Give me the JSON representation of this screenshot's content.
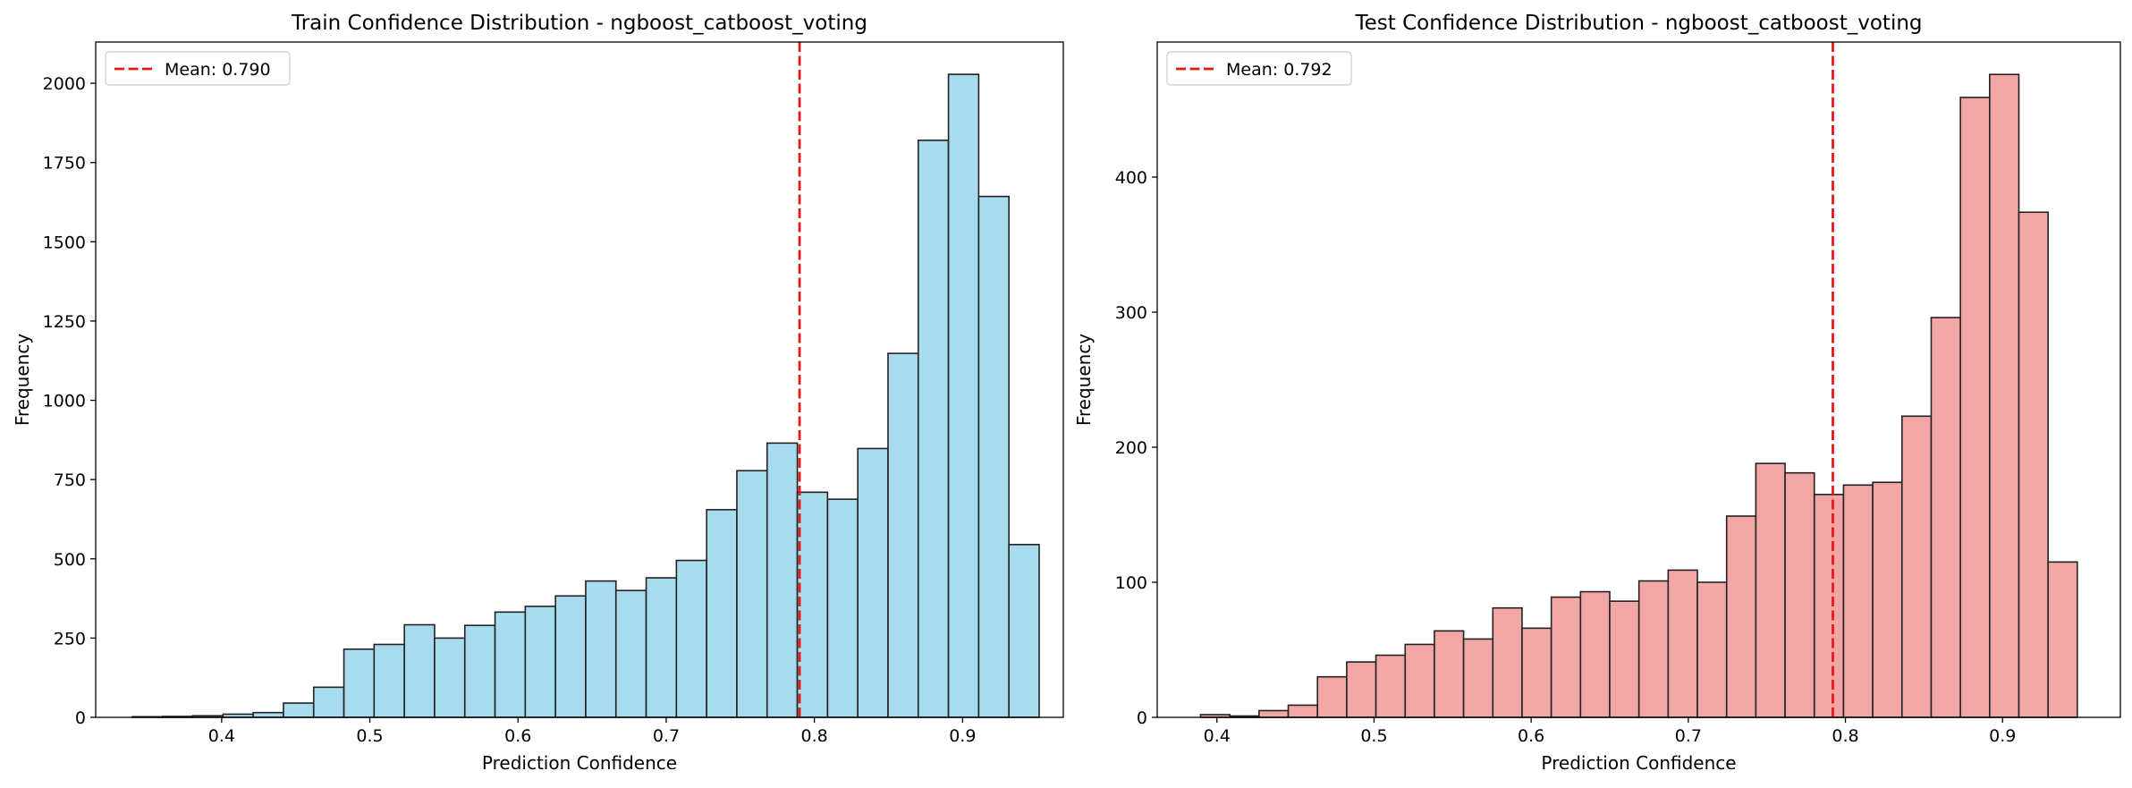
{
  "chart_data": [
    {
      "type": "bar",
      "title": "Train Confidence Distribution - ngboost_catboost_voting",
      "xlabel": "Prediction Confidence",
      "ylabel": "Frequency",
      "xlim": [
        0.315,
        0.968
      ],
      "ylim": [
        0,
        2130
      ],
      "xticks": [
        0.4,
        0.5,
        0.6,
        0.7,
        0.8,
        0.9
      ],
      "xtick_labels": [
        "0.4",
        "0.5",
        "0.6",
        "0.7",
        "0.8",
        "0.9"
      ],
      "yticks": [
        0,
        250,
        500,
        750,
        1000,
        1250,
        1500,
        1750,
        2000
      ],
      "ytick_labels": [
        "0",
        "250",
        "500",
        "750",
        "1000",
        "1250",
        "1500",
        "1750",
        "2000"
      ],
      "bin_start": 0.3397,
      "bin_width": 0.0204,
      "values": [
        2,
        3,
        5,
        10,
        15,
        45,
        95,
        215,
        230,
        292,
        250,
        290,
        332,
        350,
        383,
        430,
        400,
        440,
        495,
        655,
        778,
        865,
        710,
        688,
        848,
        1148,
        1820,
        2028,
        1643,
        545
      ],
      "bar_color": "#a9dbee",
      "edge_color": "#222222",
      "mean": 0.79,
      "mean_color": "#e31a1c",
      "legend_label": "Mean: 0.790",
      "legend_position": "upper left",
      "grid": false
    },
    {
      "type": "bar",
      "title": "Test Confidence Distribution - ngboost_catboost_voting",
      "xlabel": "Prediction Confidence",
      "ylabel": "Frequency",
      "xlim": [
        0.362,
        0.975
      ],
      "ylim": [
        0,
        500
      ],
      "xticks": [
        0.4,
        0.5,
        0.6,
        0.7,
        0.8,
        0.9
      ],
      "xtick_labels": [
        "0.4",
        "0.5",
        "0.6",
        "0.7",
        "0.8",
        "0.9"
      ],
      "yticks": [
        0,
        100,
        200,
        300,
        400
      ],
      "ytick_labels": [
        "0",
        "100",
        "200",
        "300",
        "400"
      ],
      "bin_start": 0.3896,
      "bin_width": 0.0186,
      "values": [
        2,
        1,
        5,
        9,
        30,
        41,
        46,
        54,
        64,
        58,
        81,
        66,
        89,
        93,
        86,
        101,
        109,
        100,
        149,
        188,
        181,
        165,
        172,
        174,
        223,
        296,
        459,
        476,
        374,
        115
      ],
      "bar_color": "#f2a6a6",
      "edge_color": "#222222",
      "mean": 0.792,
      "mean_color": "#e31a1c",
      "legend_label": "Mean: 0.792",
      "legend_position": "upper left",
      "grid": false
    }
  ]
}
